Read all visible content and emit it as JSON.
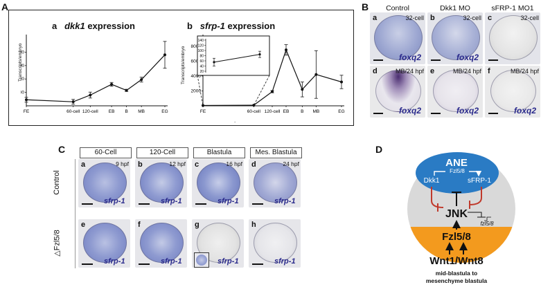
{
  "panel_labels": {
    "A": "A",
    "B": "B",
    "C": "C",
    "D": "D"
  },
  "panelA": {
    "a": {
      "letter": "a",
      "gene": "dkk1",
      "suffix": " expression",
      "ylabel": "Transcripts/embryo",
      "yticks": [
        "100",
        "200",
        "300",
        "400"
      ],
      "stages": [
        "FE",
        "60-cell",
        "120-cell",
        "EB",
        "B",
        "MB",
        "EG"
      ]
    },
    "b": {
      "letter": "b",
      "gene": "sfrp-1",
      "suffix": " expression",
      "ylabel": "Transcripts/embryo",
      "yticks": [
        "2000",
        "4000",
        "6000",
        "8000"
      ],
      "stages": [
        "FE",
        "60-cell",
        "120-cell",
        "EB",
        "B",
        "MB",
        "EG"
      ],
      "inset_ticks": [
        "20",
        "40",
        "60",
        "80",
        "100",
        "120",
        "140"
      ]
    }
  },
  "chart_data": [
    {
      "type": "line",
      "title": "dkk1 expression",
      "ylabel": "Transcripts/embryo",
      "categories": [
        "FE",
        "60-cell",
        "120-cell",
        "EB",
        "B",
        "MB",
        "EG"
      ],
      "x_positions": [
        0,
        2.2,
        3.0,
        4.0,
        4.7,
        5.4,
        6.5
      ],
      "values": [
        45,
        30,
        80,
        160,
        115,
        195,
        380
      ],
      "errors": [
        18,
        18,
        22,
        14,
        8,
        18,
        100
      ],
      "ylim": [
        0,
        500
      ]
    },
    {
      "type": "line",
      "title": "sfrp-1 expression",
      "ylabel": "Transcripts/embryo",
      "categories": [
        "FE",
        "60-cell",
        "120-cell",
        "EB",
        "B",
        "MB",
        "EG"
      ],
      "x_positions": [
        0,
        2.2,
        3.0,
        3.6,
        4.3,
        4.9,
        6.0
      ],
      "values": [
        50,
        80,
        1900,
        7500,
        2200,
        4200,
        3200
      ],
      "errors": [
        0,
        0,
        150,
        700,
        1000,
        3200,
        900
      ],
      "ylim": [
        0,
        9000
      ],
      "inset": {
        "categories": [
          "FE",
          "60-cell"
        ],
        "values": [
          55,
          85
        ],
        "errors": [
          15,
          12
        ],
        "ylim": [
          20,
          140
        ]
      }
    }
  ],
  "panelB": {
    "columns": [
      "Control",
      "Dkk1 MO",
      "sFRP-1  MO1"
    ],
    "gene": "foxq2",
    "cells": [
      {
        "letter": "a",
        "stage": "32-cell"
      },
      {
        "letter": "b",
        "stage": "32-cell"
      },
      {
        "letter": "c",
        "stage": "32-cell"
      },
      {
        "letter": "d",
        "stage": "MB/24 hpf"
      },
      {
        "letter": "e",
        "stage": "MB/24 hpf"
      },
      {
        "letter": "f",
        "stage": "MB/24 hpf"
      }
    ]
  },
  "panelC": {
    "columns": [
      "60-Cell",
      "120-Cell",
      "Blastula",
      "Mes. Blastula"
    ],
    "rows": [
      "Control",
      "△Fzl5/8"
    ],
    "gene": "sfrp-1",
    "cells": [
      {
        "letter": "a",
        "time": "9 hpf"
      },
      {
        "letter": "b",
        "time": "12 hpf"
      },
      {
        "letter": "c",
        "time": "16 hpf"
      },
      {
        "letter": "d",
        "time": "24 hpf"
      },
      {
        "letter": "e",
        "time": ""
      },
      {
        "letter": "f",
        "time": ""
      },
      {
        "letter": "g",
        "time": ""
      },
      {
        "letter": "h",
        "time": ""
      }
    ]
  },
  "panelD": {
    "ane": "ANE",
    "fzl_top": "Fzl5/8",
    "dkk1": "Dkk1",
    "sfrp1": "sFRP-1",
    "jnk": "JNK",
    "fzl_mid": "Fzl5/8",
    "wnt": "Wnt1/Wnt8",
    "fzl_gene": "fzl5/8",
    "caption_1": "mid-blastula to",
    "caption_2": "mesenchyme blastula",
    "colors": {
      "blue": "#2a7bc4",
      "orange": "#f39a1e",
      "grey": "#d9d9d9",
      "red": "#c0392b"
    }
  },
  "footnote": "."
}
